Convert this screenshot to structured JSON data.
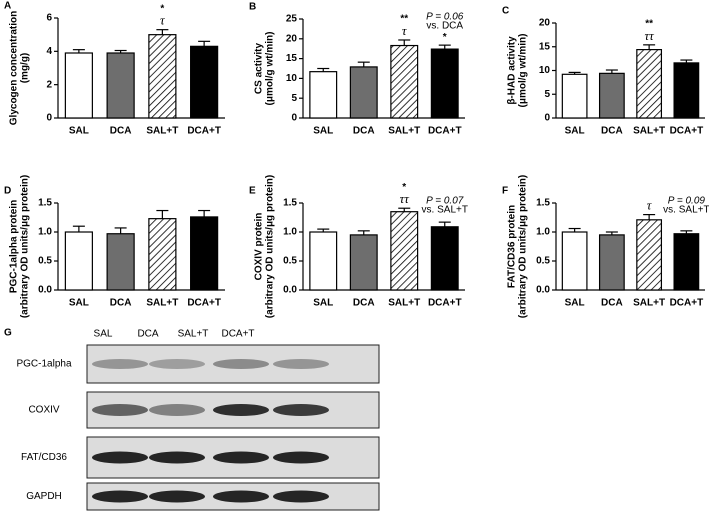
{
  "chart_data": [
    {
      "type": "bar",
      "panel": "A",
      "ylabel": [
        "Glycogen concentration",
        "(mg/g)"
      ],
      "categories": [
        "SAL",
        "DCA",
        "SAL+T",
        "DCA+T"
      ],
      "values": [
        3.9,
        3.9,
        5.0,
        4.3
      ],
      "errors": [
        0.2,
        0.15,
        0.3,
        0.3
      ],
      "bar_colors": [
        "#ffffff",
        "#6e6e6e",
        "#ffffff",
        "#000000"
      ],
      "hatched": [
        false,
        false,
        true,
        false
      ],
      "ylim": [
        0,
        6
      ],
      "yticks": [
        0,
        2,
        4,
        6
      ],
      "bar_annotations": [
        [],
        [],
        [
          "*",
          "τ"
        ],
        []
      ]
    },
    {
      "type": "bar",
      "panel": "B",
      "ylabel": [
        "CS activity",
        "(μmol/g wt/min)"
      ],
      "categories": [
        "SAL",
        "DCA",
        "SAL+T",
        "DCA+T"
      ],
      "values": [
        11.7,
        12.9,
        18.3,
        17.4
      ],
      "errors": [
        0.8,
        1.2,
        1.4,
        1.0
      ],
      "bar_colors": [
        "#ffffff",
        "#6e6e6e",
        "#ffffff",
        "#000000"
      ],
      "hatched": [
        false,
        false,
        true,
        false
      ],
      "ylim": [
        0,
        25
      ],
      "yticks": [
        0,
        5,
        10,
        15,
        20,
        25
      ],
      "bar_annotations": [
        [],
        [],
        [
          "**",
          "τ"
        ],
        [
          "*"
        ]
      ],
      "note": [
        "P = 0.06",
        "vs. DCA"
      ]
    },
    {
      "type": "bar",
      "panel": "C",
      "ylabel": [
        "β-HAD activity",
        "(μmol/g wt/min)"
      ],
      "categories": [
        "SAL",
        "DCA",
        "SAL+T",
        "DCA+T"
      ],
      "values": [
        9.2,
        9.4,
        14.4,
        11.6
      ],
      "errors": [
        0.4,
        0.7,
        1.0,
        0.6
      ],
      "bar_colors": [
        "#ffffff",
        "#6e6e6e",
        "#ffffff",
        "#000000"
      ],
      "hatched": [
        false,
        false,
        true,
        false
      ],
      "ylim": [
        0,
        20
      ],
      "yticks": [
        0,
        5,
        10,
        15,
        20
      ],
      "bar_annotations": [
        [],
        [],
        [
          "**",
          "ττ"
        ],
        []
      ]
    },
    {
      "type": "bar",
      "panel": "D",
      "ylabel": [
        "PGC-1alpha protein",
        "(arbitrary OD units/μg protein)"
      ],
      "categories": [
        "SAL",
        "DCA",
        "SAL+T",
        "DCA+T"
      ],
      "values": [
        1.0,
        0.97,
        1.23,
        1.26
      ],
      "errors": [
        0.1,
        0.1,
        0.14,
        0.11
      ],
      "bar_colors": [
        "#ffffff",
        "#6e6e6e",
        "#ffffff",
        "#000000"
      ],
      "hatched": [
        false,
        false,
        true,
        false
      ],
      "ylim": [
        0,
        1.5
      ],
      "yticks": [
        {
          "value": 0,
          "label": "0.0"
        },
        {
          "value": 0.5,
          "label": "0.5"
        },
        {
          "value": 1,
          "label": "1.0"
        },
        {
          "value": 1.5,
          "label": "1.5"
        }
      ],
      "bar_annotations": [
        [],
        [],
        [],
        []
      ]
    },
    {
      "type": "bar",
      "panel": "E",
      "ylabel": [
        "COXIV protein",
        "(arbitrary OD units/μg protein)"
      ],
      "categories": [
        "SAL",
        "DCA",
        "SAL+T",
        "DCA+T"
      ],
      "values": [
        1.0,
        0.95,
        1.35,
        1.09
      ],
      "errors": [
        0.05,
        0.07,
        0.06,
        0.08
      ],
      "bar_colors": [
        "#ffffff",
        "#6e6e6e",
        "#ffffff",
        "#000000"
      ],
      "hatched": [
        false,
        false,
        true,
        false
      ],
      "ylim": [
        0,
        1.5
      ],
      "yticks": [
        {
          "value": 0,
          "label": "0.0"
        },
        {
          "value": 0.5,
          "label": "0.5"
        },
        {
          "value": 1,
          "label": "1.0"
        },
        {
          "value": 1.5,
          "label": "1.5"
        }
      ],
      "bar_annotations": [
        [],
        [],
        [
          "*",
          "ττ"
        ],
        []
      ],
      "note": [
        "P = 0.07",
        "vs. SAL+T"
      ]
    },
    {
      "type": "bar",
      "panel": "F",
      "ylabel": [
        "FAT/CD36 protein",
        "(arbitrary OD units/μg protein)"
      ],
      "categories": [
        "SAL",
        "DCA",
        "SAL+T",
        "DCA+T"
      ],
      "values": [
        1.0,
        0.95,
        1.21,
        0.97
      ],
      "errors": [
        0.06,
        0.05,
        0.09,
        0.05
      ],
      "bar_colors": [
        "#ffffff",
        "#6e6e6e",
        "#ffffff",
        "#000000"
      ],
      "hatched": [
        false,
        false,
        true,
        false
      ],
      "ylim": [
        0,
        1.5
      ],
      "yticks": [
        {
          "value": 0,
          "label": "0.0"
        },
        {
          "value": 0.5,
          "label": "0.5"
        },
        {
          "value": 1,
          "label": "1.0"
        },
        {
          "value": 1.5,
          "label": "1.5"
        }
      ],
      "bar_annotations": [
        [],
        [],
        [
          "τ"
        ],
        []
      ],
      "note": [
        "P = 0.09",
        "vs. SAL+T"
      ]
    }
  ],
  "blot": {
    "panel": "G",
    "lanes": [
      "SAL",
      "DCA",
      "SAL+T",
      "DCA+T"
    ],
    "rows": [
      "PGC-1alpha",
      "COXIV",
      "FAT/CD36",
      "GAPDH"
    ]
  }
}
